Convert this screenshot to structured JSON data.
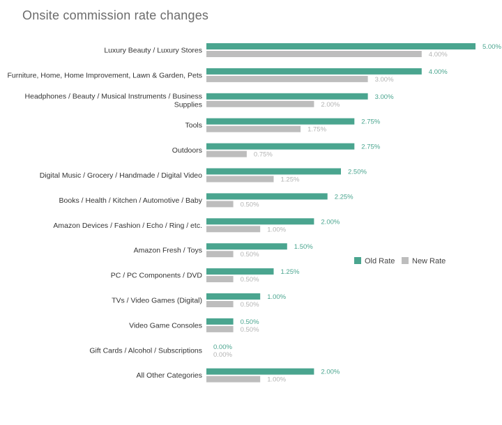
{
  "title": "Onsite commission rate changes",
  "colors": {
    "old": "#4aa58f",
    "new": "#bdbdbd",
    "old_label": "#4aa58f",
    "new_label": "#b3b3b3"
  },
  "chart_data": {
    "type": "bar",
    "orientation": "horizontal",
    "title": "Onsite commission rate changes",
    "xlabel": "",
    "ylabel": "",
    "xlim": [
      0,
      5
    ],
    "grid": false,
    "legend_position": "right",
    "categories": [
      [
        "Luxury Beauty / Luxury Stores"
      ],
      [
        "Furniture, Home, Home Improvement, Lawn & Garden, Pets"
      ],
      [
        "Headphones / Beauty / Musical Instruments / Business",
        "Supplies"
      ],
      [
        "Tools"
      ],
      [
        "Outdoors"
      ],
      [
        "Digital Music / Grocery / Handmade / Digital Video"
      ],
      [
        "Books / Health / Kitchen / Automotive / Baby"
      ],
      [
        "Amazon Devices / Fashion / Echo / Ring / etc."
      ],
      [
        "Amazon Fresh / Toys"
      ],
      [
        "PC / PC Components / DVD"
      ],
      [
        "TVs / Video Games (Digital)"
      ],
      [
        "Video Game Consoles"
      ],
      [
        "Gift Cards / Alcohol / Subscriptions"
      ],
      [
        "All Other Categories"
      ]
    ],
    "series": [
      {
        "name": "Old Rate",
        "values": [
          5.0,
          4.0,
          3.0,
          2.75,
          2.75,
          2.5,
          2.25,
          2.0,
          1.5,
          1.25,
          1.0,
          0.5,
          0.0,
          2.0
        ],
        "labels": [
          "5.00%",
          "4.00%",
          "3.00%",
          "2.75%",
          "2.75%",
          "2.50%",
          "2.25%",
          "2.00%",
          "1.50%",
          "1.25%",
          "1.00%",
          "0.50%",
          "0.00%",
          "2.00%"
        ]
      },
      {
        "name": "New Rate",
        "values": [
          4.0,
          3.0,
          2.0,
          1.75,
          0.75,
          1.25,
          0.5,
          1.0,
          0.5,
          0.5,
          0.5,
          0.5,
          0.0,
          1.0
        ],
        "labels": [
          "4.00%",
          "3.00%",
          "2.00%",
          "1.75%",
          "0.75%",
          "1.25%",
          "0.50%",
          "1.00%",
          "0.50%",
          "0.50%",
          "0.50%",
          "0.50%",
          "0.00%",
          "1.00%"
        ]
      }
    ]
  }
}
